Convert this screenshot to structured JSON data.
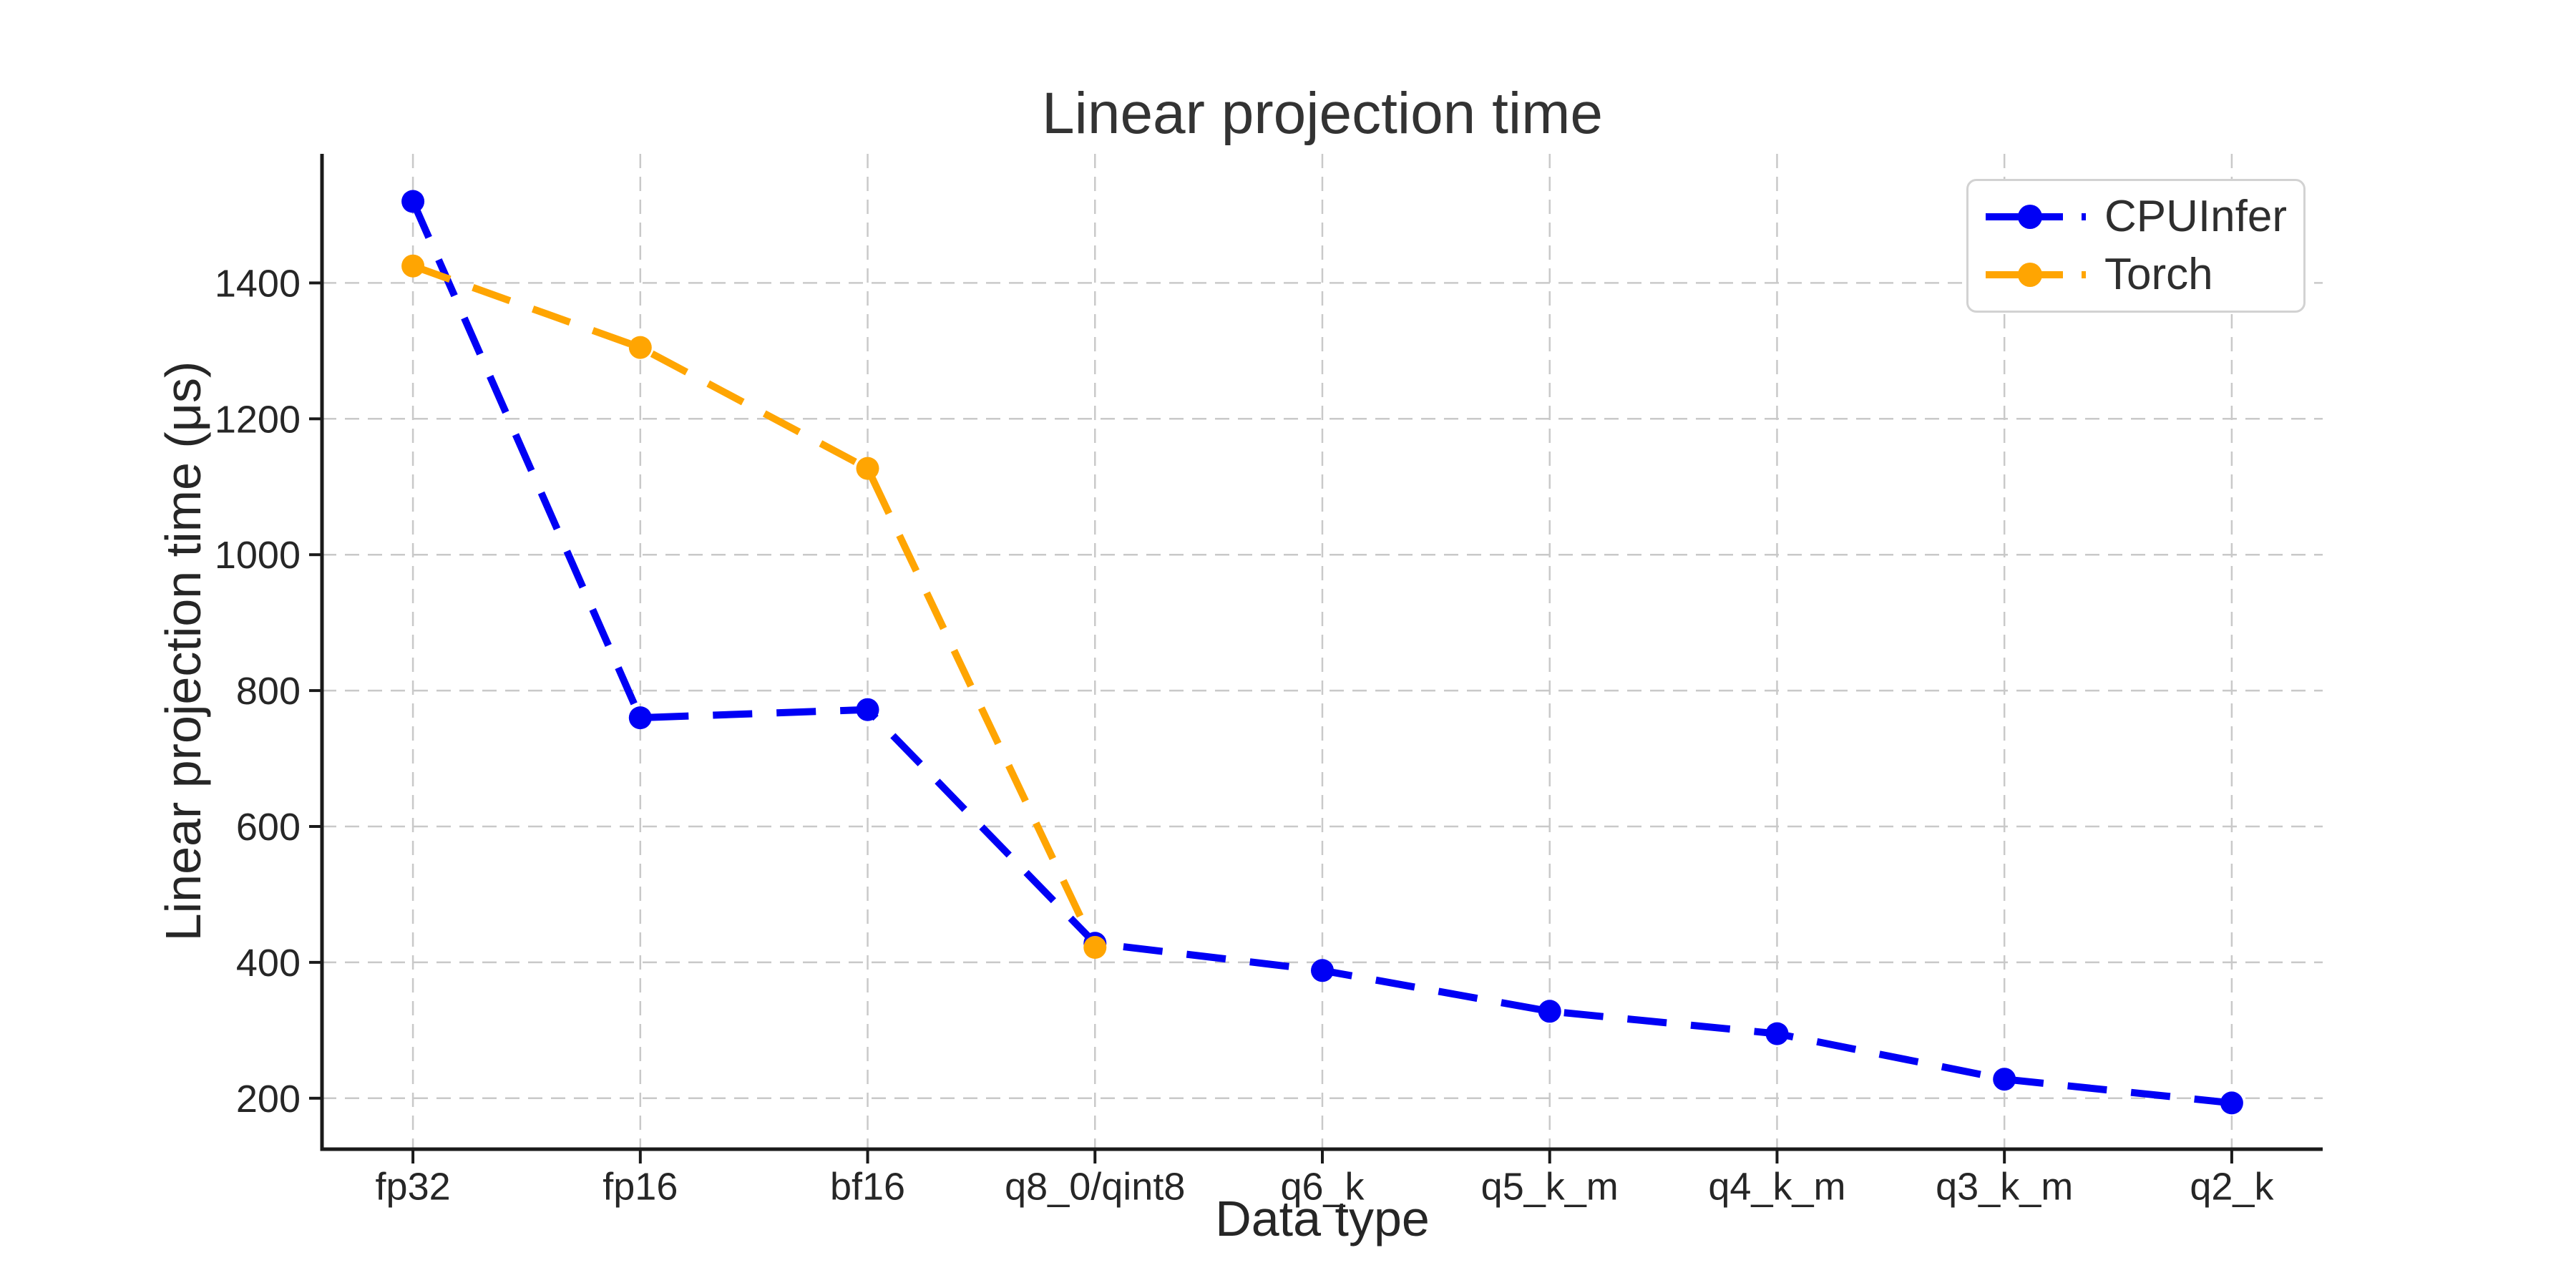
{
  "chart_data": {
    "type": "line",
    "title": "Linear projection time",
    "xlabel": "Data type",
    "ylabel": "Linear projection time (μs)",
    "categories": [
      "fp32",
      "fp16",
      "bf16",
      "q8_0/qint8",
      "q6_k",
      "q5_k_m",
      "q4_k_m",
      "q3_k_m",
      "q2_k"
    ],
    "series": [
      {
        "name": "CPUInfer",
        "color": "#0000f5",
        "values": [
          1520,
          760,
          772,
          428,
          388,
          328,
          295,
          228,
          193
        ]
      },
      {
        "name": "Torch",
        "color": "#ffa502",
        "values": [
          1425,
          1305,
          1127,
          422
        ]
      }
    ],
    "yticks": [
      200,
      400,
      600,
      800,
      1000,
      1200,
      1400
    ],
    "ylim": [
      125,
      1590
    ],
    "grid": true,
    "grid_style": "dashed",
    "line_style": "dashed",
    "marker": "circle",
    "legend_position": "upper right",
    "style": {
      "background": "#ffffff",
      "grid_color": "#c9c9c9",
      "spine_color": "#1a1a1a",
      "text_color": "#262626",
      "title_color": "#333333",
      "legend_border_color": "#d2d2d2"
    }
  }
}
